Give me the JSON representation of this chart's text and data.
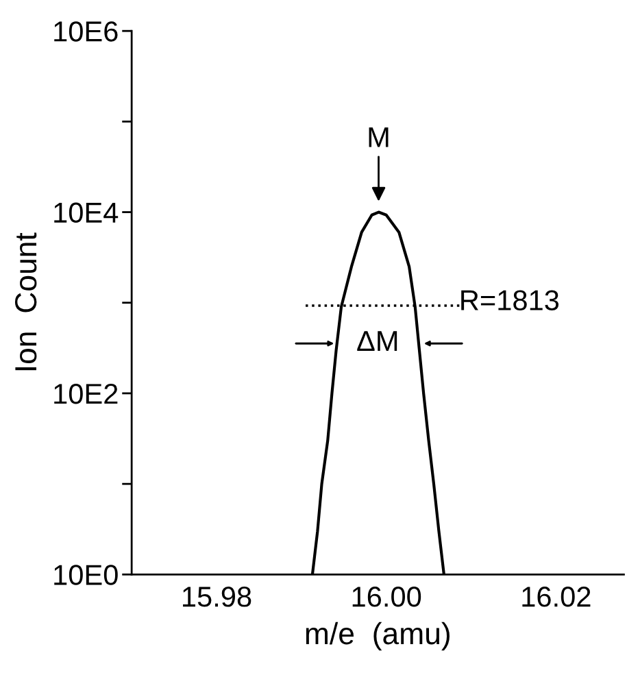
{
  "chart_data": {
    "type": "line",
    "xlabel": "m/e  (amu)",
    "ylabel": "Ion  Count",
    "log": "y",
    "grid": false,
    "marker": "none",
    "line_style": "solid",
    "xlim": [
      15.97,
      16.028
    ],
    "xticks": [
      15.98,
      {
        "value": 16.0,
        "label": "16.00"
      },
      16.02
    ],
    "ylim": [
      10,
      10000000
    ],
    "yticks": [
      {
        "value": 10,
        "label": "10E0"
      },
      {
        "value": 100,
        "label": null
      },
      {
        "value": 1000,
        "label": "10E2"
      },
      {
        "value": 10000,
        "label": null
      },
      {
        "value": 100000,
        "label": "10E4"
      },
      {
        "value": 1000000,
        "label": null
      },
      {
        "value": 10000000,
        "label": "10E6"
      }
    ],
    "series": [
      {
        "color": "#000000",
        "x": [
          15.9913,
          15.9919,
          15.9924,
          15.9931,
          15.9936,
          15.9941,
          15.9947,
          15.9959,
          15.9971,
          15.9983,
          15.9991,
          16.0,
          16.0015,
          16.0027,
          16.0034,
          16.0039,
          16.0044,
          16.005,
          16.0056,
          16.0062,
          16.0068
        ],
        "values": [
          10,
          30,
          100,
          300,
          1000,
          3000,
          9000,
          25000,
          60000,
          93000,
          100000,
          93000,
          60000,
          25000,
          9000,
          3000,
          1000,
          300,
          100,
          30,
          10
        ]
      },
      {
        "color": "#000000",
        "line_style": "dotted",
        "x": [
          15.9905,
          16.0088
        ],
        "values": [
          9300,
          9300
        ]
      }
    ],
    "annotations": [
      {
        "text": "M",
        "x": 15.9991,
        "y": 100000
      },
      "R=1813",
      "ΔM"
    ]
  }
}
